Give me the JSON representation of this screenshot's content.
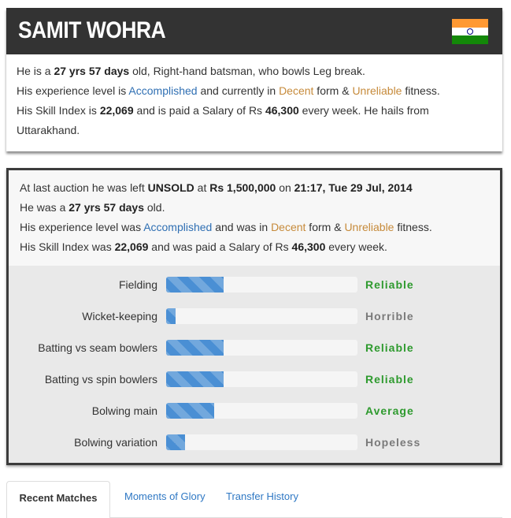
{
  "player": {
    "name": "SAMIT WOHRA",
    "flag_icon": "india-flag-icon",
    "flag_colors": [
      "#ff9933",
      "#ffffff",
      "#138808"
    ],
    "info": {
      "line1": {
        "pre": "He is a ",
        "age": "27 yrs 57 days",
        "post": " old, Right-hand batsman, who bowls Leg break."
      },
      "line2": {
        "pre": "His experience level is ",
        "experience": "Accomplished",
        "mid1": " and currently in ",
        "form": "Decent",
        "mid2": " form & ",
        "fitness": "Unreliable",
        "post": " fitness."
      },
      "line3": {
        "pre": "His Skill Index is ",
        "skill_index": "22,069",
        "mid": " and is paid a Salary of Rs ",
        "salary": "46,300",
        "post": " every week. He hails from"
      },
      "line4": "Uttarakhand."
    }
  },
  "auction": {
    "line1": {
      "pre": "At last auction he was left ",
      "status": "UNSOLD",
      "mid1": " at ",
      "price": "Rs 1,500,000",
      "mid2": " on ",
      "datetime": "21:17, Tue 29 Jul, 2014"
    },
    "line2": {
      "pre": "He was a ",
      "age": "27 yrs 57 days",
      "post": " old."
    },
    "line3": {
      "pre": "His experience level was ",
      "experience": "Accomplished",
      "mid1": " and was in ",
      "form": "Decent",
      "mid2": " form & ",
      "fitness": "Unreliable",
      "post": " fitness."
    },
    "line4": {
      "pre": "His Skill Index was ",
      "skill_index": "22,069",
      "mid": " and was paid a Salary of Rs ",
      "salary": "46,300",
      "post": " every week."
    }
  },
  "skills": [
    {
      "label": "Fielding",
      "level": "Reliable",
      "fill_fraction": 0.3,
      "level_color": "#2e9a2e"
    },
    {
      "label": "Wicket-keeping",
      "level": "Horrible",
      "fill_fraction": 0.05,
      "level_color": "#7a7a7a"
    },
    {
      "label": "Batting vs seam bowlers",
      "level": "Reliable",
      "fill_fraction": 0.3,
      "level_color": "#2e9a2e"
    },
    {
      "label": "Batting vs spin bowlers",
      "level": "Reliable",
      "fill_fraction": 0.3,
      "level_color": "#2e9a2e"
    },
    {
      "label": "Bolwing main",
      "level": "Average",
      "fill_fraction": 0.25,
      "level_color": "#2e9a2e"
    },
    {
      "label": "Bolwing variation",
      "level": "Hopeless",
      "fill_fraction": 0.1,
      "level_color": "#7a7a7a"
    }
  ],
  "tabs": [
    {
      "label": "Recent Matches",
      "active": true
    },
    {
      "label": "Moments of Glory",
      "active": false
    },
    {
      "label": "Transfer History",
      "active": false
    }
  ],
  "colors": {
    "accent_blue": "#2f6fb3",
    "accent_tan": "#c68a3a",
    "bar_fill": "#4a8fd4",
    "header_bg": "#333333"
  }
}
